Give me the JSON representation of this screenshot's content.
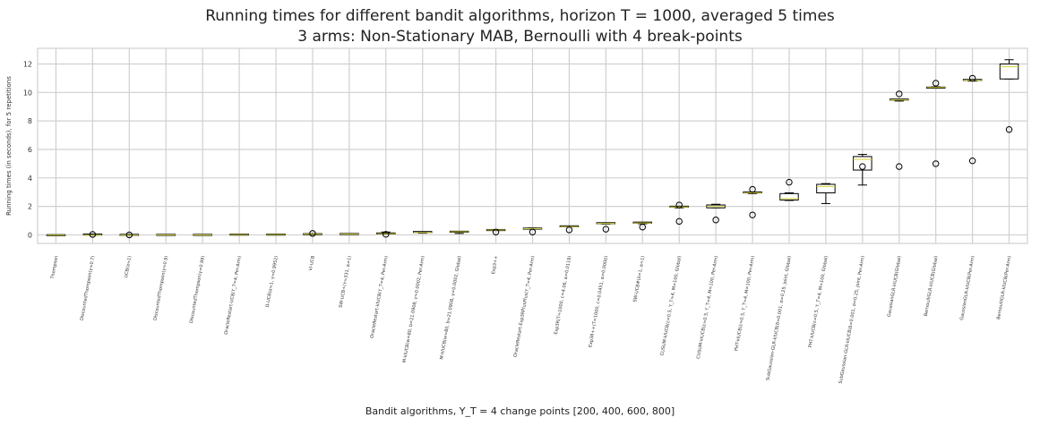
{
  "chart_data": {
    "type": "box",
    "title": "Running times for different bandit algorithms, horizon T = 1000, averaged 5 times",
    "subtitle": "3 arms: Non-Stationary MAB, Bernoulli with 4 break-points",
    "xlabel": "Bandit algorithms, Υ_T = 4 change points [200, 400, 600, 800]",
    "ylabel": "Running times (in seconds), for 5 repetitions",
    "ylim": [
      -0.6,
      13.1
    ],
    "yticks": [
      0,
      2,
      4,
      6,
      8,
      10,
      12
    ],
    "grid": true,
    "legend": "none",
    "colors": {
      "box": "#000000",
      "median": "#d4d43a",
      "grid": "#d0d0d0",
      "flier": "#000000"
    },
    "categories": [
      "Thompson",
      "DiscountedThompson(γ=0.7)",
      "UCB(α=1)",
      "DiscountedThompson(γ=0.9)",
      "DiscountedThompson(γ=0.99)",
      "OracleRestart-UCB(Υ_T=4, Per-Arm)",
      "D-UCB(α=1, γ=0.9952)",
      "kl-UCB",
      "SW-UCB+(τ=331, α=1)",
      "OracleRestart-klUCB(Υ_T=4, Per-Arm)",
      "M-klUCB(w=80, b=21.0908, γ=0.0002, Per-Arm)",
      "M-klUCB(w=80, b=21.0908, γ=0.0002, Global)",
      "Exp3++",
      "OracleRestart-Exp3RPlusPlus(Υ_T=4, Per-Arm)",
      "Exp3R(T=1000, c=4.06, α=0.0119)",
      "Exp3R++(T=1000, c=0.0451, α=0.0000)",
      "SW-UCB#(λ=1, α=1)",
      "CUSUM-klUCB(ε=0.5, Υ_T=4, M=100, Global)",
      "CUSUM-klUCB(ε=0.5, Υ_T=4, M=100, Per-Arm)",
      "PHT-klUCB(ε=0.5, Υ_T=4, M=100, Per-Arm)",
      "SubGaussian-GLR-klUCB(δ=0.001, σ=0.25, joint, Global)",
      "PHT-klUCB(ε=0.5, Υ_T=4, M=100, Global)",
      "SubGaussian-GLR-klUCB(δ=0.001, σ=0.25, joint, Per-Arm)",
      "GaussianGLR-klUCB(Global)",
      "BernoulliGLR-klUCB(Global)",
      "GaussianGLR-klUCB(Per-Arm)",
      "BernoulliGLR-klUCB(Per-Arm)"
    ],
    "boxes": [
      {
        "whislo": -0.02,
        "q1": -0.02,
        "med": -0.02,
        "q3": -0.02,
        "whishi": -0.02,
        "fliers": []
      },
      {
        "whislo": -0.02,
        "q1": -0.02,
        "med": -0.02,
        "q3": 0.02,
        "whishi": 0.02,
        "fliers": [
          0.03
        ]
      },
      {
        "whislo": -0.02,
        "q1": -0.02,
        "med": -0.02,
        "q3": 0.0,
        "whishi": 0.0,
        "fliers": [
          0.0
        ]
      },
      {
        "whislo": 0.0,
        "q1": 0.0,
        "med": 0.0,
        "q3": 0.0,
        "whishi": 0.0,
        "fliers": []
      },
      {
        "whislo": 0.0,
        "q1": 0.0,
        "med": 0.0,
        "q3": 0.0,
        "whishi": 0.0,
        "fliers": []
      },
      {
        "whislo": 0.0,
        "q1": 0.0,
        "med": 0.02,
        "q3": 0.02,
        "whishi": 0.03,
        "fliers": []
      },
      {
        "whislo": 0.0,
        "q1": 0.0,
        "med": 0.02,
        "q3": 0.02,
        "whishi": 0.03,
        "fliers": []
      },
      {
        "whislo": 0.03,
        "q1": 0.03,
        "med": 0.05,
        "q3": 0.05,
        "whishi": 0.07,
        "fliers": [
          0.1
        ]
      },
      {
        "whislo": 0.05,
        "q1": 0.05,
        "med": 0.06,
        "q3": 0.06,
        "whishi": 0.08,
        "fliers": []
      },
      {
        "whislo": 0.06,
        "q1": 0.06,
        "med": 0.08,
        "q3": 0.1,
        "whishi": 0.2,
        "fliers": [
          0.04
        ]
      },
      {
        "whislo": 0.12,
        "q1": 0.14,
        "med": 0.16,
        "q3": 0.2,
        "whishi": 0.22,
        "fliers": []
      },
      {
        "whislo": 0.1,
        "q1": 0.18,
        "med": 0.22,
        "q3": 0.22,
        "whishi": 0.24,
        "fliers": []
      },
      {
        "whislo": 0.32,
        "q1": 0.32,
        "med": 0.34,
        "q3": 0.34,
        "whishi": 0.36,
        "fliers": [
          0.2
        ]
      },
      {
        "whislo": 0.42,
        "q1": 0.42,
        "med": 0.44,
        "q3": 0.44,
        "whishi": 0.48,
        "fliers": [
          0.2
        ]
      },
      {
        "whislo": 0.56,
        "q1": 0.56,
        "med": 0.58,
        "q3": 0.6,
        "whishi": 0.62,
        "fliers": [
          0.35
        ]
      },
      {
        "whislo": 0.76,
        "q1": 0.78,
        "med": 0.8,
        "q3": 0.82,
        "whishi": 0.84,
        "fliers": [
          0.4
        ]
      },
      {
        "whislo": 0.78,
        "q1": 0.8,
        "med": 0.84,
        "q3": 0.86,
        "whishi": 0.88,
        "fliers": [
          0.55
        ]
      },
      {
        "whislo": 1.9,
        "q1": 1.92,
        "med": 1.96,
        "q3": 1.98,
        "whishi": 2.0,
        "fliers": [
          2.1,
          0.95
        ]
      },
      {
        "whislo": 1.9,
        "q1": 1.9,
        "med": 2.0,
        "q3": 2.1,
        "whishi": 2.15,
        "fliers": [
          1.05
        ]
      },
      {
        "whislo": 2.9,
        "q1": 2.92,
        "med": 2.96,
        "q3": 2.98,
        "whishi": 3.0,
        "fliers": [
          3.2,
          1.4
        ]
      },
      {
        "whislo": 2.42,
        "q1": 2.45,
        "med": 2.55,
        "q3": 2.9,
        "whishi": 2.95,
        "fliers": [
          3.7
        ]
      },
      {
        "whislo": 2.2,
        "q1": 2.95,
        "med": 3.4,
        "q3": 3.55,
        "whishi": 3.6,
        "fliers": []
      },
      {
        "whislo": 3.5,
        "q1": 4.55,
        "med": 5.3,
        "q3": 5.5,
        "whishi": 5.65,
        "fliers": [
          4.8
        ]
      },
      {
        "whislo": 9.4,
        "q1": 9.45,
        "med": 9.48,
        "q3": 9.5,
        "whishi": 9.5,
        "fliers": [
          9.9,
          4.8
        ]
      },
      {
        "whislo": 10.3,
        "q1": 10.3,
        "med": 10.35,
        "q3": 10.38,
        "whishi": 10.4,
        "fliers": [
          10.65,
          5.0
        ]
      },
      {
        "whislo": 10.8,
        "q1": 10.82,
        "med": 10.85,
        "q3": 10.88,
        "whishi": 10.9,
        "fliers": [
          11.0,
          5.2
        ]
      },
      {
        "whislo": 10.95,
        "q1": 10.95,
        "med": 11.8,
        "q3": 12.0,
        "whishi": 12.3,
        "fliers": [
          7.4
        ]
      }
    ]
  }
}
